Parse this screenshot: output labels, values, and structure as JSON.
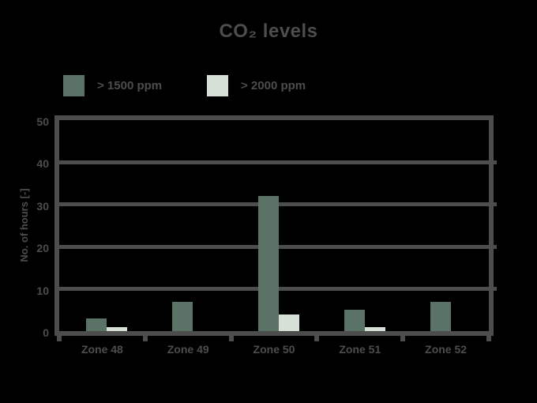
{
  "title": "CO₂ levels",
  "colors": {
    "background": "#000000",
    "axis_and_text": "#4d4d4d",
    "bar_gt_1500": "#5a7366",
    "bar_gt_2000": "#d6e0d7"
  },
  "legend": [
    {
      "label": "> 1500 ppm",
      "color": "#5a7366"
    },
    {
      "label": "> 2000 ppm",
      "color": "#d6e0d7"
    }
  ],
  "chart_data": {
    "type": "bar",
    "title": "CO₂ levels",
    "categories": [
      "Zone 48",
      "Zone 49",
      "Zone 50",
      "Zone 51",
      "Zone 52"
    ],
    "series": [
      {
        "name": "> 1500 ppm",
        "color": "#5a7366",
        "values": [
          3,
          7,
          32,
          5,
          7
        ]
      },
      {
        "name": "> 2000 ppm",
        "color": "#d6e0d7",
        "values": [
          1,
          0,
          4,
          1,
          0
        ]
      }
    ],
    "xlabel": "",
    "ylabel": "No. of hours [-]",
    "ylim": [
      0,
      50
    ],
    "yticks": [
      0,
      10,
      20,
      30,
      40,
      50
    ],
    "grid": true,
    "legend_position": "top-left"
  }
}
